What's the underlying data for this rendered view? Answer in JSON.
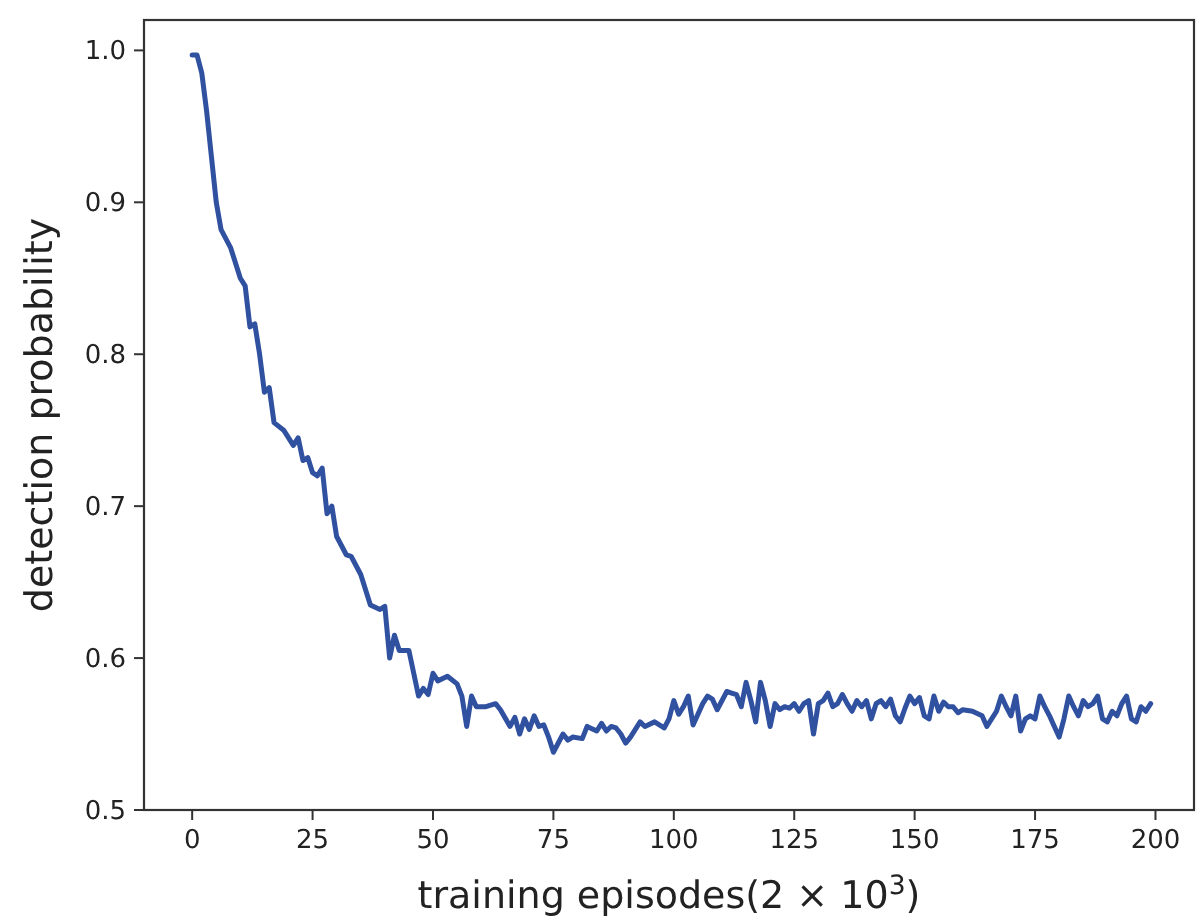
{
  "chart_data": {
    "type": "line",
    "xlabel": "training episodes(2 × 10$^{3}$)",
    "ylabel": "detection probability",
    "xlim": [
      -10,
      208
    ],
    "ylim": [
      0.5,
      1.02
    ],
    "xticks": [
      0,
      25,
      50,
      75,
      100,
      125,
      150,
      175,
      200
    ],
    "yticks": [
      {
        "value": 0.5,
        "label": "0.5"
      },
      {
        "value": 0.6,
        "label": "0.6"
      },
      {
        "value": 0.7,
        "label": "0.7"
      },
      {
        "value": 0.8,
        "label": "0.8"
      },
      {
        "value": 0.9,
        "label": "0.9"
      },
      {
        "value": 1.0,
        "label": "1.0"
      }
    ],
    "grid": false,
    "marker": "none",
    "line_style": "solid",
    "series": [
      {
        "color": "#3050a0",
        "x": [
          0,
          1,
          2,
          3,
          4,
          5,
          6,
          8,
          10,
          11,
          12,
          13,
          14,
          15,
          16,
          17,
          19,
          21,
          22,
          23,
          24,
          25,
          26,
          27,
          28,
          29,
          30,
          32,
          33,
          35,
          36,
          37,
          39,
          40,
          41,
          42,
          43,
          45,
          46,
          47,
          48,
          49,
          50,
          51,
          53,
          55,
          56,
          57,
          58,
          59,
          61,
          63,
          64,
          66,
          67,
          68,
          69,
          70,
          71,
          72,
          73,
          74,
          75,
          77,
          78,
          79,
          81,
          82,
          84,
          85,
          86,
          87,
          88,
          89,
          90,
          91,
          93,
          94,
          96,
          98,
          99,
          100,
          101,
          102,
          103,
          104,
          106,
          107,
          108,
          109,
          111,
          112,
          113,
          114,
          115,
          116,
          117,
          118,
          119,
          120,
          121,
          122,
          123,
          124,
          125,
          126,
          127,
          128,
          129,
          130,
          131,
          132,
          133,
          134,
          135,
          136,
          137,
          138,
          139,
          140,
          141,
          142,
          143,
          144,
          145,
          146,
          147,
          148,
          149,
          150,
          151,
          152,
          153,
          154,
          155,
          156,
          157,
          158,
          159,
          160,
          162,
          164,
          165,
          167,
          168,
          169,
          170,
          171,
          172,
          173,
          174,
          175,
          176,
          177,
          178,
          179,
          180,
          181,
          182,
          183,
          184,
          185,
          186,
          187,
          188,
          189,
          190,
          191,
          192,
          193,
          194,
          195,
          196,
          197,
          198,
          199
        ],
        "values": [
          0.997,
          0.997,
          0.985,
          0.96,
          0.93,
          0.9,
          0.882,
          0.87,
          0.85,
          0.845,
          0.818,
          0.82,
          0.8,
          0.775,
          0.778,
          0.755,
          0.75,
          0.74,
          0.745,
          0.73,
          0.732,
          0.722,
          0.72,
          0.725,
          0.695,
          0.7,
          0.68,
          0.668,
          0.667,
          0.655,
          0.645,
          0.635,
          0.632,
          0.634,
          0.6,
          0.615,
          0.605,
          0.605,
          0.59,
          0.575,
          0.58,
          0.576,
          0.59,
          0.585,
          0.588,
          0.583,
          0.575,
          0.555,
          0.575,
          0.568,
          0.568,
          0.57,
          0.566,
          0.555,
          0.561,
          0.55,
          0.56,
          0.553,
          0.562,
          0.555,
          0.556,
          0.548,
          0.538,
          0.55,
          0.546,
          0.548,
          0.547,
          0.555,
          0.552,
          0.557,
          0.552,
          0.555,
          0.554,
          0.55,
          0.544,
          0.548,
          0.558,
          0.555,
          0.558,
          0.554,
          0.56,
          0.572,
          0.563,
          0.568,
          0.575,
          0.556,
          0.57,
          0.575,
          0.573,
          0.566,
          0.578,
          0.577,
          0.576,
          0.568,
          0.584,
          0.572,
          0.558,
          0.584,
          0.572,
          0.555,
          0.57,
          0.566,
          0.568,
          0.567,
          0.57,
          0.565,
          0.57,
          0.572,
          0.55,
          0.57,
          0.572,
          0.577,
          0.568,
          0.57,
          0.576,
          0.57,
          0.565,
          0.572,
          0.568,
          0.572,
          0.56,
          0.57,
          0.572,
          0.568,
          0.573,
          0.562,
          0.558,
          0.567,
          0.575,
          0.57,
          0.574,
          0.562,
          0.56,
          0.575,
          0.565,
          0.571,
          0.568,
          0.568,
          0.564,
          0.566,
          0.565,
          0.562,
          0.555,
          0.565,
          0.575,
          0.568,
          0.562,
          0.575,
          0.552,
          0.56,
          0.562,
          0.56,
          0.575,
          0.568,
          0.562,
          0.555,
          0.548,
          0.56,
          0.575,
          0.568,
          0.562,
          0.572,
          0.568,
          0.57,
          0.575,
          0.56,
          0.558,
          0.565,
          0.562,
          0.57,
          0.575,
          0.56,
          0.558,
          0.568,
          0.565,
          0.57
        ]
      }
    ]
  }
}
